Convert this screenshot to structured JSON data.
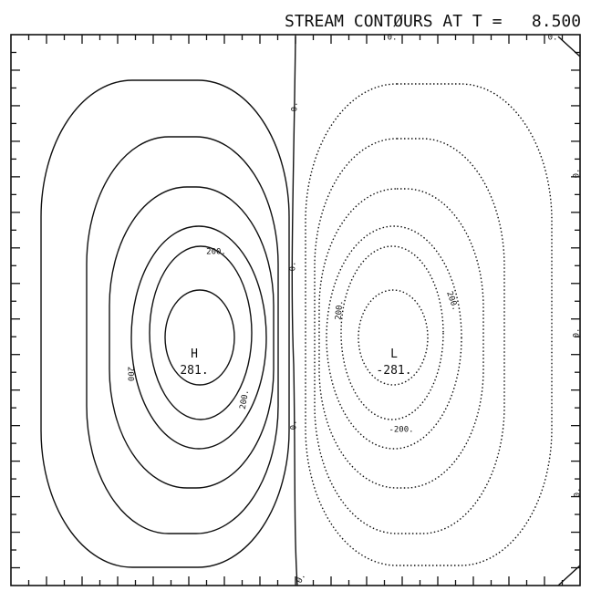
{
  "title": "STREAM CONTØURS AT T =   8.500",
  "extrema": [
    {
      "symbol": "H",
      "value": "281."
    },
    {
      "symbol": "L",
      "value": "-281."
    }
  ],
  "contour_labels": [
    "200.",
    "200",
    "200.",
    "200.",
    "200.",
    "-200.",
    "0.",
    "0.",
    "0.",
    "0.",
    "0.",
    "0.",
    "0.",
    "0.",
    "0."
  ]
}
